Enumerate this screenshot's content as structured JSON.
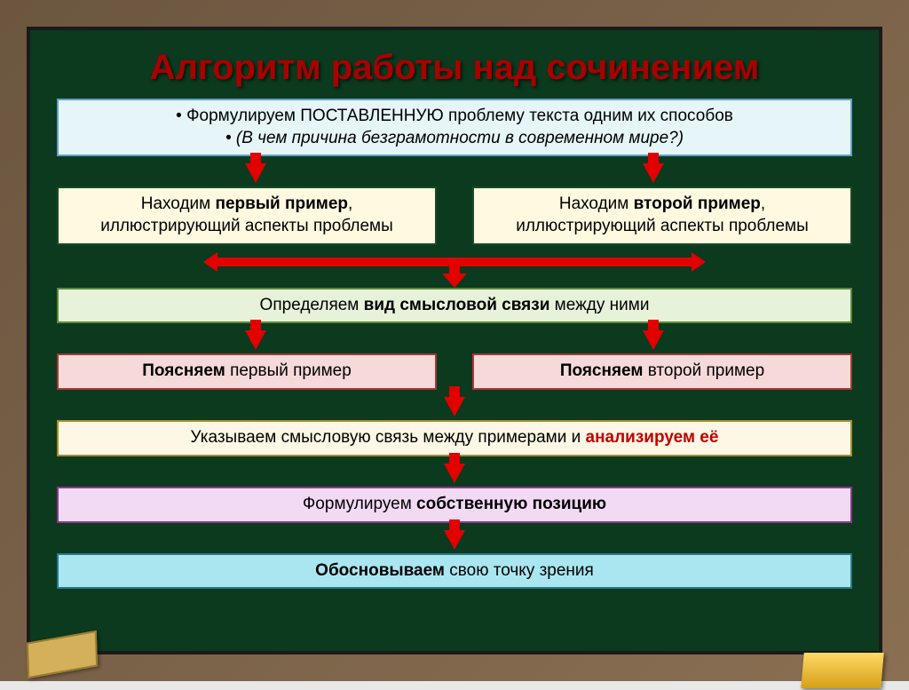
{
  "title": {
    "text": "Алгоритм работы над сочинением",
    "color": "#aa0000"
  },
  "colors": {
    "board_bg": "#0b3a1e",
    "arrow": "#e20000",
    "analyze_highlight": "#c00000"
  },
  "boxes": {
    "step1": {
      "bg": "#e6f5f8",
      "border": "#63a0c4",
      "line1_a": "Формулируем ",
      "line1_b": "ПОСТАВЛЕННУЮ",
      "line1_c": " проблему текста одним их способов",
      "line2": "(В чем причина безграмотности в современном мире?)"
    },
    "ex1": {
      "bg": "#fff9e0",
      "border": "#1b4a28",
      "t1": "Находим ",
      "t2": "первый пример",
      "t3": ",",
      "t4": "иллюстрирующий аспекты проблемы"
    },
    "ex2": {
      "bg": "#fff9e0",
      "border": "#1b4a28",
      "t1": "Находим ",
      "t2": "второй пример",
      "t3": ",",
      "t4": "иллюстрирующий аспекты проблемы"
    },
    "step3": {
      "bg": "#e6f2d9",
      "border": "#5a8a3a",
      "t1": "Определяем ",
      "t2": "вид смысловой связи",
      "t3": " между ними"
    },
    "expl1": {
      "bg": "#f6d9d9",
      "border": "#a03a3a",
      "t1": "Поясняем ",
      "t2": "первый пример"
    },
    "expl2": {
      "bg": "#f6d9d9",
      "border": "#a03a3a",
      "t1": "Поясняем ",
      "t2": "второй  пример"
    },
    "step5": {
      "bg": "#fdf8e5",
      "border": "#a88b2a",
      "t1": "Указываем смысловую связь между примерами и ",
      "t2": "анализируем её"
    },
    "step6": {
      "bg": "#f2d9f4",
      "border": "#8a3a8a",
      "t1": "Формулируем ",
      "t2": "собственную позицию"
    },
    "step7": {
      "bg": "#a9e6f0",
      "border": "#2a7a8a",
      "t1": "Обосновываем ",
      "t2": "свою точку зрения"
    }
  }
}
